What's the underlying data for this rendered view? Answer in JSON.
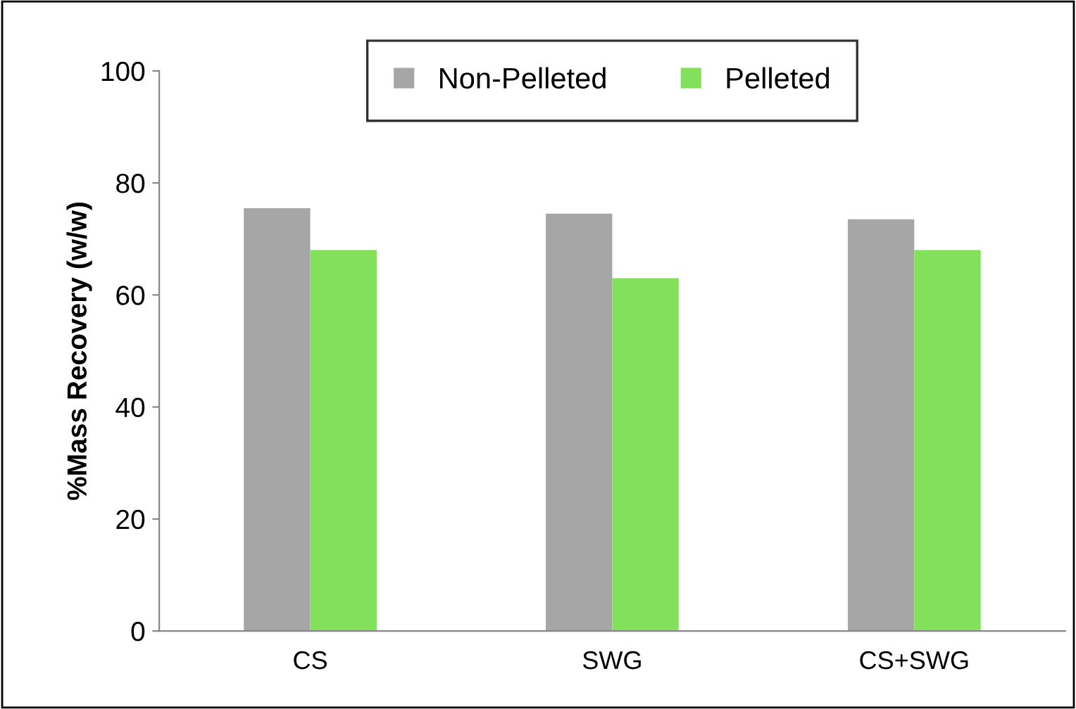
{
  "chart_data": {
    "type": "bar",
    "ylabel": "%Mass Recovery (w/w)",
    "categories": [
      "CS",
      "SWG",
      "CS+SWG"
    ],
    "series": [
      {
        "name": "Non-Pelleted",
        "color": "#a6a6a6",
        "values": [
          75.5,
          74.5,
          73.5
        ]
      },
      {
        "name": "Pelleted",
        "color": "#82e05a",
        "values": [
          68,
          63,
          68
        ]
      }
    ],
    "ylim": [
      0,
      100
    ],
    "yticks": [
      0,
      20,
      40,
      60,
      80,
      100
    ],
    "grid": false,
    "legend": "top"
  }
}
